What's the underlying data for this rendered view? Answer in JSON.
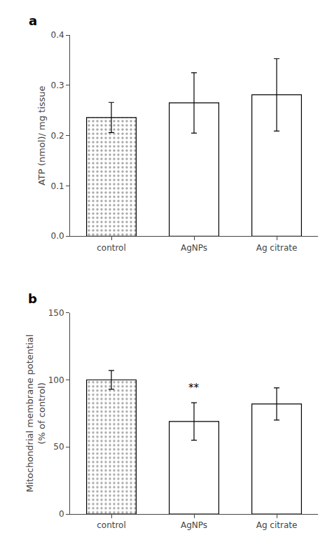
{
  "chart_data": [
    {
      "type": "bar",
      "title": "a",
      "categories": [
        "control",
        "AgNPs",
        "Ag citrate"
      ],
      "values": [
        0.236,
        0.265,
        0.281
      ],
      "errors": [
        0.03,
        0.06,
        0.072
      ],
      "colors": [
        "#aaaaaa",
        "#ffffff",
        "#ffffff"
      ],
      "ylabel": "ATP (nmol)/ mg tissue",
      "ylim": [
        0,
        0.4
      ],
      "yticks": [
        {
          "value": 0,
          "label": "0.0"
        },
        0.1,
        0.2,
        0.3,
        0.4
      ],
      "grid": false,
      "annotations": []
    },
    {
      "type": "bar",
      "title": "b",
      "categories": [
        "control",
        "AgNPs",
        "Ag citrate"
      ],
      "values": [
        100.0,
        69.0,
        82.0
      ],
      "errors": [
        7.0,
        14.0,
        12.0
      ],
      "colors": [
        "#aaaaaa",
        "#ffffff",
        "#ffffff"
      ],
      "ylabel": "Mitochondrial membrane potential\n(% of control)",
      "ylim": [
        0,
        150
      ],
      "yticks": [
        0,
        50,
        100,
        150
      ],
      "grid": false,
      "annotations": [
        {
          "x": "AgNPs",
          "text": "**"
        }
      ]
    }
  ]
}
